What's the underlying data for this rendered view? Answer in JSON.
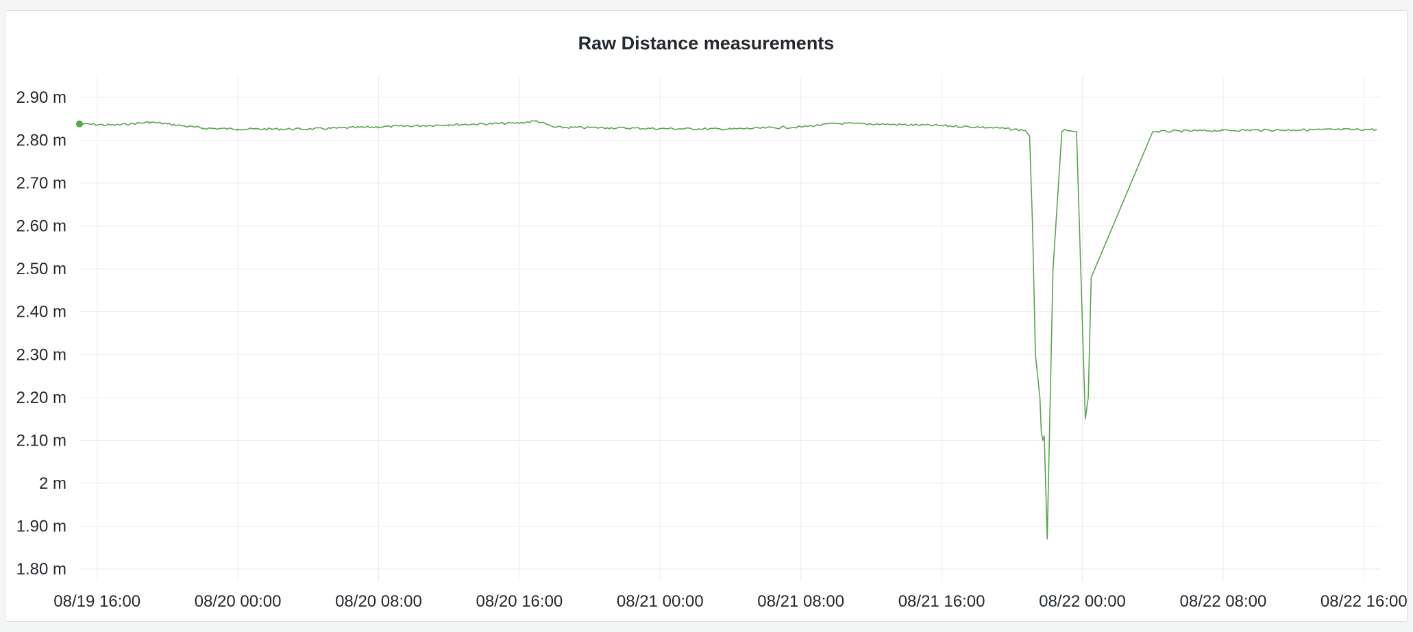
{
  "panel": {
    "title": "Raw Distance measurements"
  },
  "chart_data": {
    "type": "line",
    "title": "Raw Distance measurements",
    "xlabel": "",
    "ylabel": "",
    "x_tick_labels": [
      "08/19 16:00",
      "08/20 00:00",
      "08/20 08:00",
      "08/20 16:00",
      "08/21 00:00",
      "08/21 08:00",
      "08/21 16:00",
      "08/22 00:00",
      "08/22 08:00",
      "08/22 16:00"
    ],
    "y_tick_labels": [
      "2.90 m",
      "2.80 m",
      "2.70 m",
      "2.60 m",
      "2.50 m",
      "2.40 m",
      "2.30 m",
      "2.20 m",
      "2.10 m",
      "2 m",
      "1.90 m",
      "1.80 m"
    ],
    "y_ticks": [
      2.9,
      2.8,
      2.7,
      2.6,
      2.5,
      2.4,
      2.3,
      2.2,
      2.1,
      2.0,
      1.9,
      1.8
    ],
    "ylim": [
      1.8,
      2.9
    ],
    "xlim": [
      "2024-08-19 15:00",
      "2024-08-22 17:00"
    ],
    "grid": true,
    "legend": "none",
    "color": "#56a64b",
    "series": [
      {
        "x": [
          "2024-08-19 15:00",
          "2024-08-19 17:00",
          "2024-08-19 19:00",
          "2024-08-19 20:00",
          "2024-08-19 22:00",
          "2024-08-20 00:00",
          "2024-08-20 04:00",
          "2024-08-20 08:00",
          "2024-08-20 12:00",
          "2024-08-20 16:00",
          "2024-08-20 17:00",
          "2024-08-20 18:00",
          "2024-08-20 21:00",
          "2024-08-21 00:00",
          "2024-08-21 04:00",
          "2024-08-21 08:00",
          "2024-08-21 10:00",
          "2024-08-21 13:00",
          "2024-08-21 16:00",
          "2024-08-21 19:00",
          "2024-08-21 20:45",
          "2024-08-21 21:00",
          "2024-08-21 21:10",
          "2024-08-21 21:20",
          "2024-08-21 21:35",
          "2024-08-21 21:40",
          "2024-08-21 21:45",
          "2024-08-21 21:50",
          "2024-08-21 22:00",
          "2024-08-21 22:20",
          "2024-08-21 22:50",
          "2024-08-21 23:00",
          "2024-08-21 23:10",
          "2024-08-21 23:20",
          "2024-08-21 23:30",
          "2024-08-21 23:40",
          "2024-08-21 23:50",
          "2024-08-22 00:10",
          "2024-08-22 00:20",
          "2024-08-22 00:30",
          "2024-08-22 04:00",
          "2024-08-22 08:00",
          "2024-08-22 12:00",
          "2024-08-22 16:00",
          "2024-08-22 16:45"
        ],
        "values": [
          2.838,
          2.835,
          2.842,
          2.838,
          2.828,
          2.826,
          2.826,
          2.831,
          2.836,
          2.84,
          2.845,
          2.83,
          2.829,
          2.827,
          2.826,
          2.831,
          2.839,
          2.837,
          2.834,
          2.829,
          2.823,
          2.81,
          2.6,
          2.3,
          2.2,
          2.12,
          2.1,
          2.11,
          1.87,
          2.5,
          2.82,
          2.825,
          2.822,
          2.822,
          2.82,
          2.82,
          2.6,
          2.15,
          2.2,
          2.48,
          2.82,
          2.823,
          2.824,
          2.825,
          2.825
        ]
      }
    ]
  }
}
